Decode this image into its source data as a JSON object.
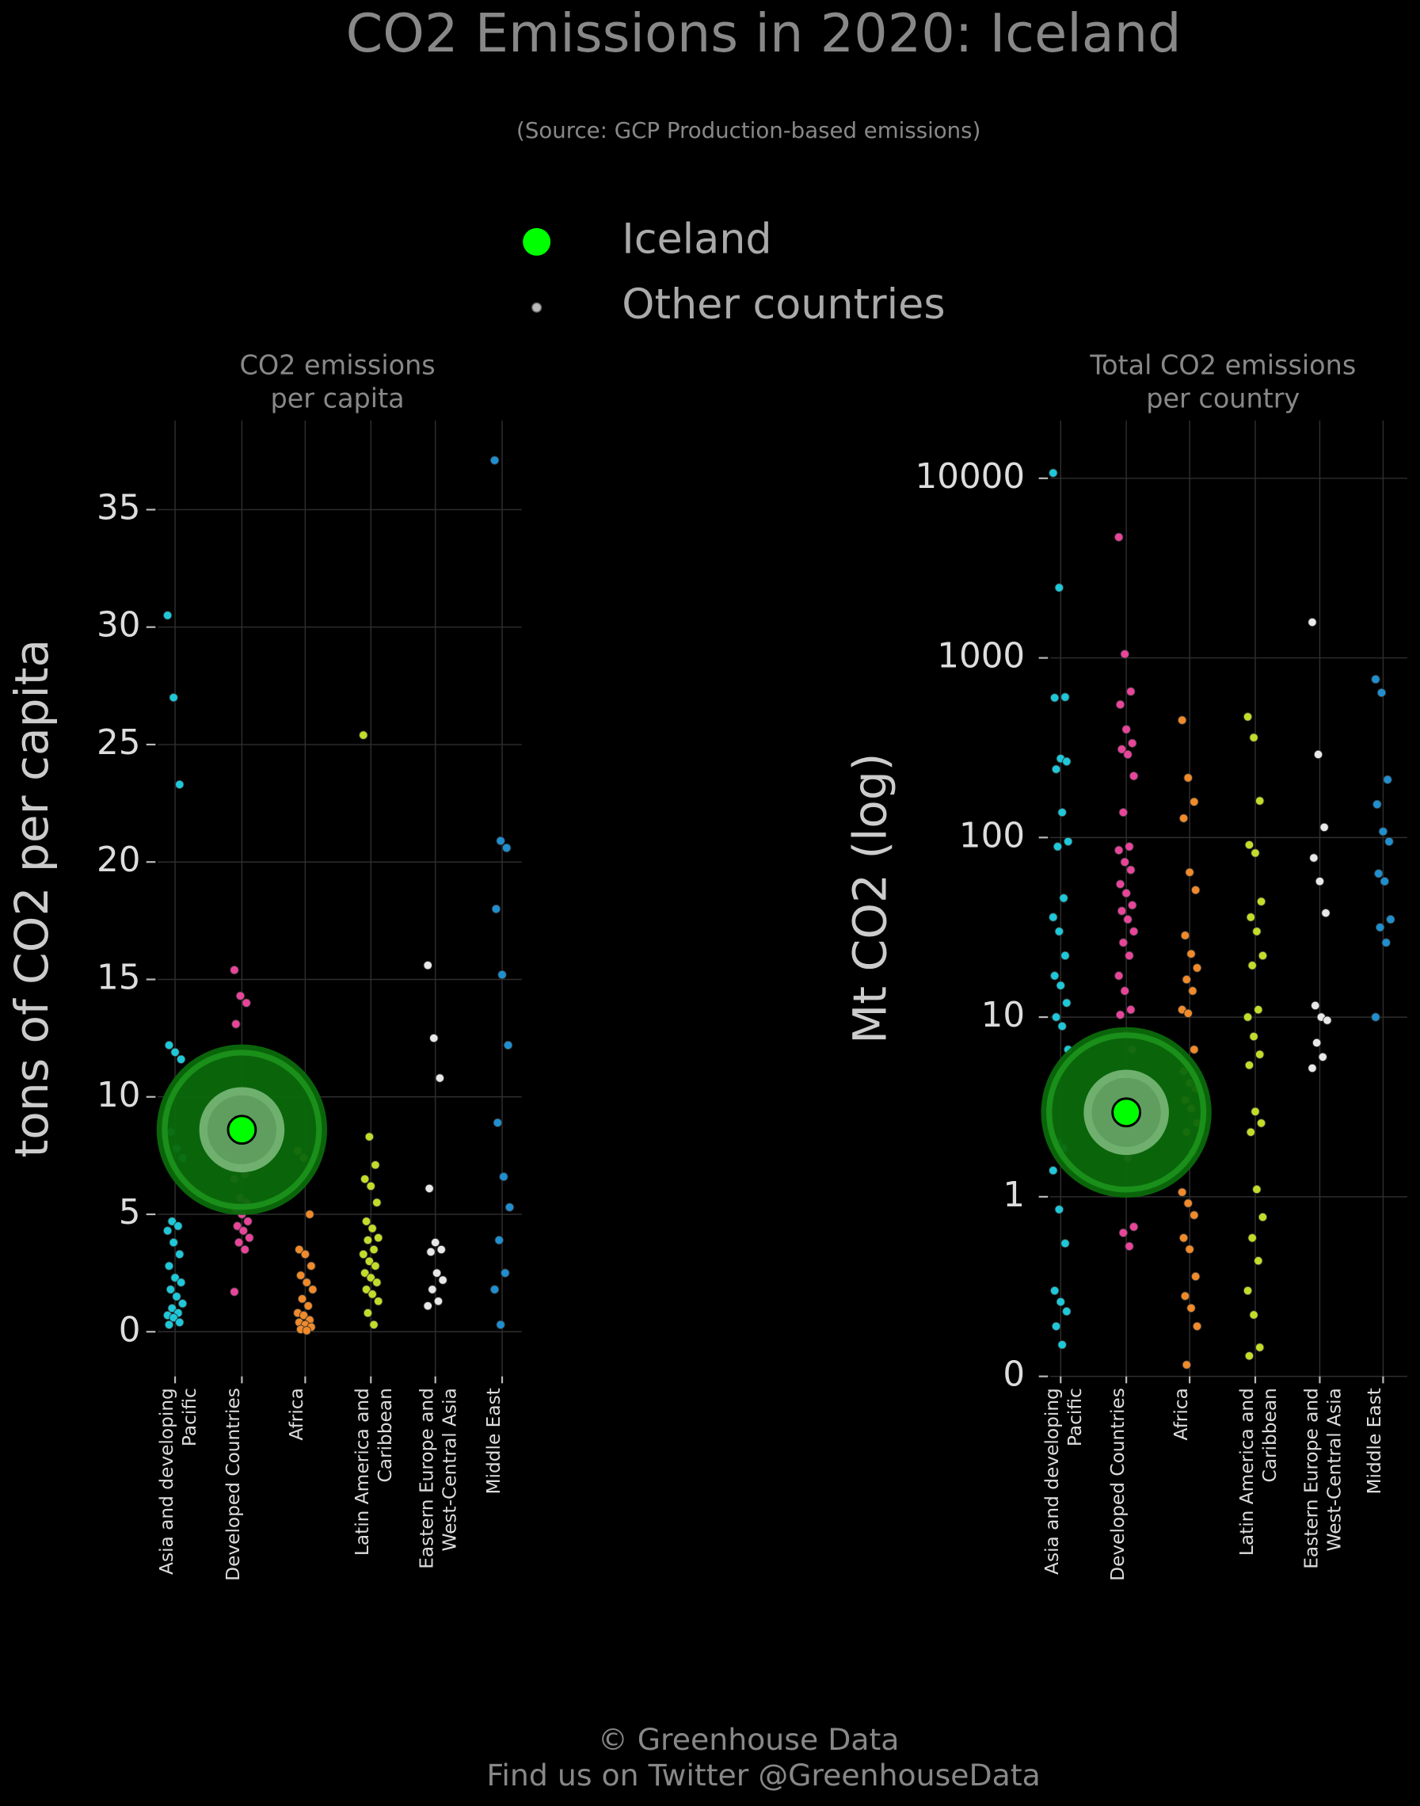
{
  "title": "CO2 Emissions in 2020: Iceland",
  "subtitle": "(Source: GCP Production-based emissions)",
  "legend": [
    "Iceland",
    "Other countries"
  ],
  "footer": [
    "© Greenhouse Data",
    "Find us on Twitter @GreenhouseData"
  ],
  "chart_data": [
    {
      "type": "strip",
      "title": [
        "CO2 emissions",
        "per capita"
      ],
      "y_label": "tons of CO2 per capita",
      "categories": [
        "Asia and developing\nPacific",
        "Developed Countries",
        "Africa",
        "Latin America and\nCaribbean",
        "Eastern Europe and\nWest-Central Asia",
        "Middle East"
      ],
      "ylim": [
        -1.9,
        38.8
      ],
      "yticks": [
        0,
        5,
        10,
        15,
        20,
        25,
        30,
        35
      ],
      "log": false,
      "grid": true,
      "highlight": {
        "category": "Developed Countries",
        "value": 8.6,
        "color": "#00ff00"
      },
      "groups": [
        {
          "color": "#1ec8d8",
          "values": [
            30.5,
            27.0,
            23.3,
            12.2,
            11.9,
            11.6,
            8.5,
            7.8,
            7.4,
            4.7,
            4.5,
            4.3,
            3.8,
            3.3,
            2.8,
            2.3,
            2.1,
            1.8,
            1.5,
            1.2,
            1.0,
            0.8,
            0.7,
            0.6,
            0.4,
            0.3
          ]
        },
        {
          "color": "#e8459a",
          "values": [
            15.4,
            14.3,
            14.0,
            13.1,
            10.0,
            8.9,
            8.4,
            7.7,
            7.2,
            7.0,
            6.7,
            6.5,
            5.7,
            5.5,
            5.2,
            5.0,
            4.7,
            4.5,
            4.3,
            4.0,
            3.8,
            3.5,
            1.7
          ]
        },
        {
          "color": "#f08a2a",
          "values": [
            7.7,
            7.4,
            5.0,
            3.5,
            3.3,
            2.8,
            2.4,
            2.1,
            1.8,
            1.4,
            1.1,
            0.8,
            0.7,
            0.5,
            0.4,
            0.3,
            0.2,
            0.1,
            0.05
          ]
        },
        {
          "color": "#c3dc2a",
          "values": [
            25.4,
            8.3,
            7.1,
            6.5,
            6.2,
            5.5,
            4.7,
            4.4,
            4.0,
            3.9,
            3.5,
            3.3,
            3.0,
            2.8,
            2.5,
            2.3,
            2.1,
            1.8,
            1.6,
            1.3,
            0.8,
            0.3
          ]
        },
        {
          "color": "#e8e8e8",
          "values": [
            15.6,
            12.5,
            10.8,
            6.1,
            3.8,
            3.5,
            3.4,
            2.5,
            2.2,
            1.8,
            1.3,
            1.1
          ]
        },
        {
          "color": "#1f8fd0",
          "values": [
            37.1,
            20.9,
            20.6,
            18.0,
            15.2,
            12.2,
            8.9,
            6.6,
            5.3,
            3.9,
            2.5,
            1.8,
            0.3
          ]
        }
      ]
    },
    {
      "type": "strip",
      "title": [
        "Total CO2 emissions",
        "per country"
      ],
      "y_label": "Mt CO2 (log)",
      "categories": [
        "Asia and developing\nPacific",
        "Developed Countries",
        "Africa",
        "Latin America and\nCaribbean",
        "Eastern Europe and\nWest-Central Asia",
        "Middle East"
      ],
      "ylim": [
        0.1,
        21000
      ],
      "yticks": [
        {
          "value": 0.1,
          "label": "0"
        },
        1,
        10,
        100,
        1000,
        10000
      ],
      "log": true,
      "grid": true,
      "highlight": {
        "category": "Developed Countries",
        "value": 2.95,
        "color": "#00ff00"
      },
      "groups": [
        {
          "color": "#1ec8d8",
          "values": [
            10700,
            2460,
            605,
            600,
            275,
            265,
            240,
            138,
            95,
            89,
            46,
            36,
            30,
            22,
            17,
            15,
            12,
            10,
            8.9,
            6.6,
            2.0,
            1.86,
            1.4,
            0.85,
            0.55,
            0.3,
            0.26,
            0.23,
            0.19,
            0.15
          ]
        },
        {
          "color": "#e8459a",
          "values": [
            4700,
            1050,
            650,
            550,
            400,
            335,
            310,
            290,
            220,
            138,
            89,
            85,
            73,
            66,
            55,
            49,
            42,
            39,
            35,
            30,
            26,
            22,
            17,
            14,
            11,
            10.3,
            8,
            6.6,
            4.6,
            1.65,
            0.68,
            0.63,
            0.53
          ]
        },
        {
          "color": "#f08a2a",
          "values": [
            450,
            215,
            158,
            128,
            64,
            51,
            28.5,
            22.5,
            18.8,
            16.2,
            14,
            11,
            10.5,
            6.6,
            5,
            4.3,
            4,
            3.45,
            3.1,
            2.57,
            2.29,
            1.78,
            1.06,
            0.92,
            0.79,
            0.59,
            0.51,
            0.36,
            0.28,
            0.24,
            0.19,
            0.116
          ]
        },
        {
          "color": "#c3dc2a",
          "values": [
            470,
            360,
            160,
            91,
            82,
            44,
            36,
            30,
            22,
            19.4,
            11,
            10,
            7.8,
            6.2,
            5.4,
            2.98,
            2.57,
            2.29,
            1.1,
            0.77,
            0.59,
            0.44,
            0.3,
            0.22,
            0.145,
            0.13
          ]
        },
        {
          "color": "#e8e8e8",
          "values": [
            1580,
            290,
            114,
            77,
            57,
            38,
            11.6,
            10,
            9.6,
            7.2,
            6,
            5.2
          ]
        },
        {
          "color": "#1f8fd0",
          "values": [
            760,
            640,
            210,
            153,
            108,
            95,
            63,
            57,
            35,
            31.6,
            26,
            10
          ]
        }
      ]
    }
  ]
}
